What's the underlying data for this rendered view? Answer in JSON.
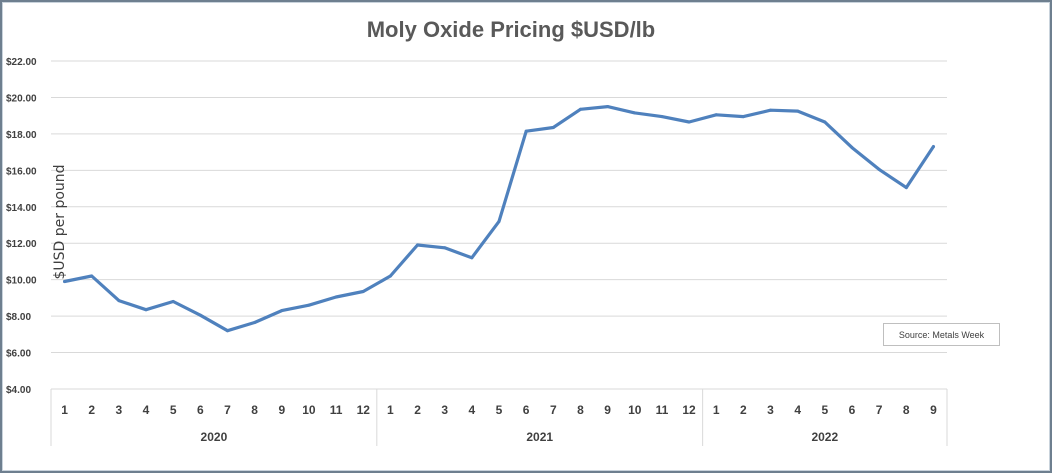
{
  "chart_data": {
    "type": "line",
    "title": "Moly Oxide Pricing $USD/lb",
    "ylabel": "$USD per pound",
    "xlabel": "",
    "ylim": [
      4,
      22
    ],
    "yticks": [
      "$4.00",
      "$6.00",
      "$8.00",
      "$10.00",
      "$12.00",
      "$14.00",
      "$16.00",
      "$18.00",
      "$20.00",
      "$22.00"
    ],
    "ytick_values": [
      4,
      6,
      8,
      10,
      12,
      14,
      16,
      18,
      20,
      22
    ],
    "grid": true,
    "line_color": "#4f81bd",
    "groups": [
      {
        "year": "2020",
        "months": [
          "1",
          "2",
          "3",
          "4",
          "5",
          "6",
          "7",
          "8",
          "9",
          "10",
          "11",
          "12"
        ]
      },
      {
        "year": "2021",
        "months": [
          "1",
          "2",
          "3",
          "4",
          "5",
          "6",
          "7",
          "8",
          "9",
          "10",
          "11",
          "12"
        ]
      },
      {
        "year": "2022",
        "months": [
          "1",
          "2",
          "3",
          "4",
          "5",
          "6",
          "7",
          "8",
          "9"
        ]
      }
    ],
    "values": [
      9.9,
      10.2,
      8.85,
      8.35,
      8.8,
      8.05,
      7.2,
      7.65,
      8.3,
      8.6,
      9.05,
      9.35,
      10.2,
      11.9,
      11.75,
      11.2,
      13.2,
      18.15,
      18.35,
      19.35,
      19.5,
      19.15,
      18.95,
      18.65,
      19.05,
      18.95,
      19.3,
      19.25,
      18.65,
      17.25,
      16.05,
      15.05,
      17.3
    ]
  },
  "source_note": "Source: Metals Week"
}
